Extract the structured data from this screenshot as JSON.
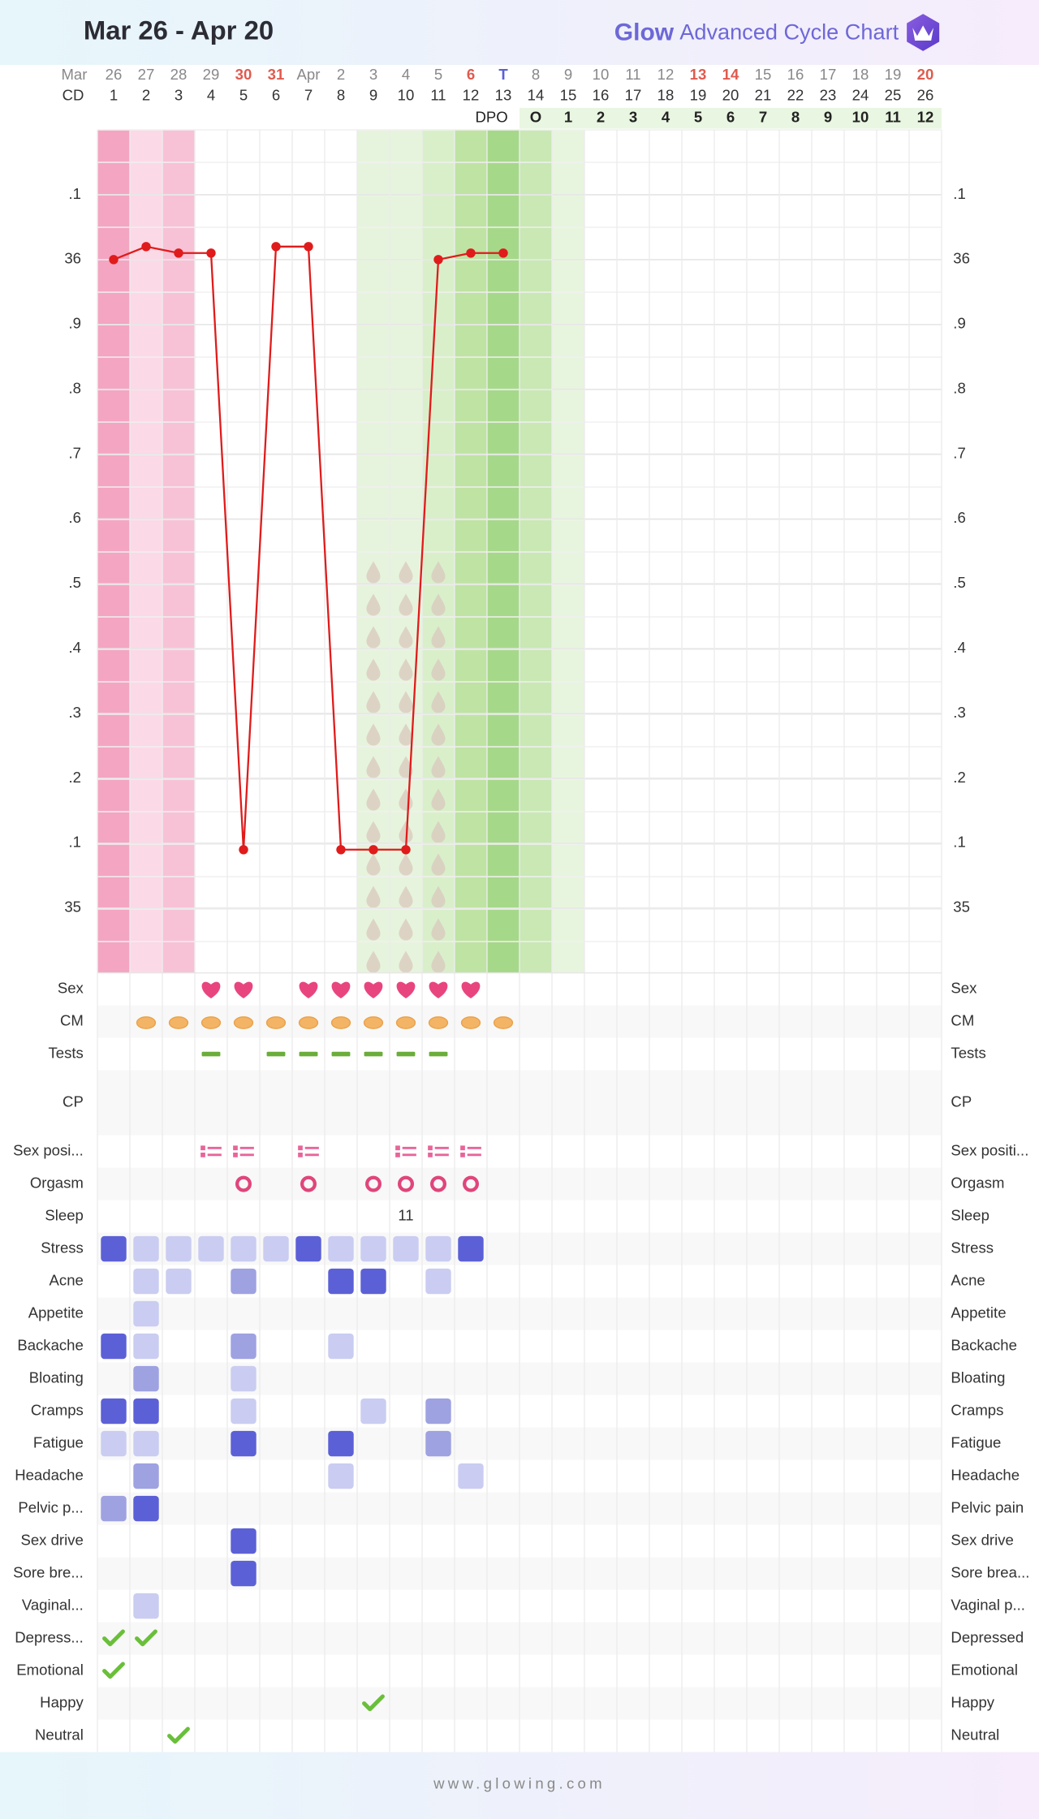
{
  "header": {
    "title": "Mar 26 - Apr 20",
    "logo_glow": "Glow",
    "logo_text": "Advanced Cycle Chart"
  },
  "footer": "www.glowing.com",
  "days": {
    "month_label": "Mar",
    "cd_label": "CD",
    "dpo_label": "DPO",
    "dates": [
      26,
      27,
      28,
      29,
      30,
      31,
      "Apr",
      2,
      3,
      4,
      5,
      6,
      "T",
      8,
      9,
      10,
      11,
      12,
      13,
      14,
      15,
      16,
      17,
      18,
      19,
      20
    ],
    "date_colors": [
      "#888888",
      "#888888",
      "#888888",
      "#888888",
      "#e05a4e",
      "#e05a4e",
      "#888888",
      "#888888",
      "#888888",
      "#888888",
      "#888888",
      "#e05a4e",
      "#5b5fd6",
      "#888888",
      "#888888",
      "#888888",
      "#888888",
      "#888888",
      "#e05a4e",
      "#e05a4e",
      "#888888",
      "#888888",
      "#888888",
      "#888888",
      "#888888",
      "#e05a4e"
    ],
    "cycle_days": [
      1,
      2,
      3,
      4,
      5,
      6,
      7,
      8,
      9,
      10,
      11,
      12,
      13,
      14,
      15,
      16,
      17,
      18,
      19,
      20,
      21,
      22,
      23,
      24,
      25,
      26
    ],
    "dpo": [
      null,
      null,
      null,
      null,
      null,
      null,
      null,
      null,
      null,
      null,
      null,
      null,
      null,
      "O",
      1,
      2,
      3,
      4,
      5,
      6,
      7,
      8,
      9,
      10,
      11,
      12
    ]
  },
  "chart_data": {
    "type": "line",
    "color": "#e01b1b",
    "values": [
      36.0,
      36.02,
      36.01,
      36.01,
      35.09,
      36.02,
      36.02,
      35.09,
      35.09,
      35.09,
      36.0,
      36.01,
      36.01,
      null,
      null,
      null,
      null,
      null,
      null,
      null,
      null,
      null,
      null,
      null,
      null,
      null
    ],
    "ylim": [
      34.9,
      36.2
    ],
    "yticks": [
      {
        "value": 36.1,
        "label": ".1"
      },
      36,
      {
        "value": 35.9,
        "label": ".9"
      },
      {
        "value": 35.8,
        "label": ".8"
      },
      {
        "value": 35.7,
        "label": ".7"
      },
      {
        "value": 35.6,
        "label": ".6"
      },
      {
        "value": 35.5,
        "label": ".5"
      },
      {
        "value": 35.4,
        "label": ".4"
      },
      {
        "value": 35.3,
        "label": ".3"
      },
      {
        "value": 35.2,
        "label": ".2"
      },
      {
        "value": 35.1,
        "label": ".1"
      },
      35
    ],
    "grid": true,
    "band_colors": [
      "#f4a5c2",
      "#fcd9e6",
      "#f8c2d6",
      null,
      null,
      null,
      null,
      null,
      "#e7f4dd",
      "#e7f4dd",
      "#d9efca",
      "#bfe3a3",
      "#a6d88a",
      "#c9e8b4",
      "#e8f5de",
      null,
      null,
      null,
      null,
      null,
      null,
      null,
      null,
      null,
      null,
      null
    ]
  },
  "level_colors": [
    "#cacdf1",
    "#9ea2e1",
    "#5c60d6"
  ],
  "rows": [
    {
      "label": "Sex",
      "label_right": "Sex",
      "kind": "heart",
      "values": [
        null,
        null,
        null,
        1,
        1,
        null,
        1,
        1,
        1,
        1,
        1,
        1,
        null,
        null,
        null,
        null,
        null,
        null,
        null,
        null,
        null,
        null,
        null,
        null,
        null,
        null
      ]
    },
    {
      "label": "CM",
      "label_right": "CM",
      "kind": "cm",
      "values": [
        null,
        1,
        1,
        1,
        1,
        1,
        1,
        1,
        1,
        1,
        1,
        1,
        1,
        null,
        null,
        null,
        null,
        null,
        null,
        null,
        null,
        null,
        null,
        null,
        null,
        null
      ]
    },
    {
      "label": "Tests",
      "label_right": "Tests",
      "kind": "test",
      "values": [
        null,
        null,
        null,
        1,
        null,
        1,
        1,
        1,
        1,
        1,
        1,
        null,
        null,
        null,
        null,
        null,
        null,
        null,
        null,
        null,
        null,
        null,
        null,
        null,
        null,
        null
      ]
    },
    {
      "label": "CP",
      "label_right": "CP",
      "kind": "empty",
      "tall": true
    },
    {
      "label": "Sex posi...",
      "label_right": "Sex positi...",
      "kind": "position",
      "values": [
        null,
        null,
        null,
        1,
        1,
        null,
        1,
        null,
        null,
        1,
        1,
        1,
        null,
        null,
        null,
        null,
        null,
        null,
        null,
        null,
        null,
        null,
        null,
        null,
        null,
        null
      ]
    },
    {
      "label": "Orgasm",
      "label_right": "Orgasm",
      "kind": "ring",
      "values": [
        null,
        null,
        null,
        null,
        1,
        null,
        1,
        null,
        1,
        1,
        1,
        1,
        null,
        null,
        null,
        null,
        null,
        null,
        null,
        null,
        null,
        null,
        null,
        null,
        null,
        null
      ]
    },
    {
      "label": "Sleep",
      "label_right": "Sleep",
      "kind": "text",
      "values": [
        null,
        null,
        null,
        null,
        null,
        null,
        null,
        null,
        null,
        11,
        null,
        null,
        null,
        null,
        null,
        null,
        null,
        null,
        null,
        null,
        null,
        null,
        null,
        null,
        null,
        null
      ]
    },
    {
      "label": "Stress",
      "label_right": "Stress",
      "kind": "level",
      "values": [
        3,
        1,
        1,
        1,
        1,
        1,
        3,
        1,
        1,
        1,
        1,
        3,
        null,
        null,
        null,
        null,
        null,
        null,
        null,
        null,
        null,
        null,
        null,
        null,
        null,
        null
      ]
    },
    {
      "label": "Acne",
      "label_right": "Acne",
      "kind": "level",
      "values": [
        null,
        1,
        1,
        null,
        2,
        null,
        null,
        3,
        3,
        null,
        1,
        null,
        null,
        null,
        null,
        null,
        null,
        null,
        null,
        null,
        null,
        null,
        null,
        null,
        null,
        null
      ]
    },
    {
      "label": "Appetite",
      "label_right": "Appetite",
      "kind": "level",
      "values": [
        null,
        1,
        null,
        null,
        null,
        null,
        null,
        null,
        null,
        null,
        null,
        null,
        null,
        null,
        null,
        null,
        null,
        null,
        null,
        null,
        null,
        null,
        null,
        null,
        null,
        null
      ]
    },
    {
      "label": "Backache",
      "label_right": "Backache",
      "kind": "level",
      "values": [
        3,
        1,
        null,
        null,
        2,
        null,
        null,
        1,
        null,
        null,
        null,
        null,
        null,
        null,
        null,
        null,
        null,
        null,
        null,
        null,
        null,
        null,
        null,
        null,
        null,
        null
      ]
    },
    {
      "label": "Bloating",
      "label_right": "Bloating",
      "kind": "level",
      "values": [
        null,
        2,
        null,
        null,
        1,
        null,
        null,
        null,
        null,
        null,
        null,
        null,
        null,
        null,
        null,
        null,
        null,
        null,
        null,
        null,
        null,
        null,
        null,
        null,
        null,
        null
      ]
    },
    {
      "label": "Cramps",
      "label_right": "Cramps",
      "kind": "level",
      "values": [
        3,
        3,
        null,
        null,
        1,
        null,
        null,
        null,
        1,
        null,
        2,
        null,
        null,
        null,
        null,
        null,
        null,
        null,
        null,
        null,
        null,
        null,
        null,
        null,
        null,
        null
      ]
    },
    {
      "label": "Fatigue",
      "label_right": "Fatigue",
      "kind": "level",
      "values": [
        1,
        1,
        null,
        null,
        3,
        null,
        null,
        3,
        null,
        null,
        2,
        null,
        null,
        null,
        null,
        null,
        null,
        null,
        null,
        null,
        null,
        null,
        null,
        null,
        null,
        null
      ]
    },
    {
      "label": "Headache",
      "label_right": "Headache",
      "kind": "level",
      "values": [
        null,
        2,
        null,
        null,
        null,
        null,
        null,
        1,
        null,
        null,
        null,
        1,
        null,
        null,
        null,
        null,
        null,
        null,
        null,
        null,
        null,
        null,
        null,
        null,
        null,
        null
      ]
    },
    {
      "label": "Pelvic p...",
      "label_right": "Pelvic pain",
      "kind": "level",
      "values": [
        2,
        3,
        null,
        null,
        null,
        null,
        null,
        null,
        null,
        null,
        null,
        null,
        null,
        null,
        null,
        null,
        null,
        null,
        null,
        null,
        null,
        null,
        null,
        null,
        null,
        null
      ]
    },
    {
      "label": "Sex drive",
      "label_right": "Sex drive",
      "kind": "level",
      "values": [
        null,
        null,
        null,
        null,
        3,
        null,
        null,
        null,
        null,
        null,
        null,
        null,
        null,
        null,
        null,
        null,
        null,
        null,
        null,
        null,
        null,
        null,
        null,
        null,
        null,
        null
      ]
    },
    {
      "label": "Sore bre...",
      "label_right": "Sore brea...",
      "kind": "level",
      "values": [
        null,
        null,
        null,
        null,
        3,
        null,
        null,
        null,
        null,
        null,
        null,
        null,
        null,
        null,
        null,
        null,
        null,
        null,
        null,
        null,
        null,
        null,
        null,
        null,
        null,
        null
      ]
    },
    {
      "label": "Vaginal...",
      "label_right": "Vaginal p...",
      "kind": "level",
      "values": [
        null,
        1,
        null,
        null,
        null,
        null,
        null,
        null,
        null,
        null,
        null,
        null,
        null,
        null,
        null,
        null,
        null,
        null,
        null,
        null,
        null,
        null,
        null,
        null,
        null,
        null
      ]
    },
    {
      "label": "Depress...",
      "label_right": "Depressed",
      "kind": "check",
      "values": [
        1,
        1,
        null,
        null,
        null,
        null,
        null,
        null,
        null,
        null,
        null,
        null,
        null,
        null,
        null,
        null,
        null,
        null,
        null,
        null,
        null,
        null,
        null,
        null,
        null,
        null
      ]
    },
    {
      "label": "Emotional",
      "label_right": "Emotional",
      "kind": "check",
      "values": [
        1,
        null,
        null,
        null,
        null,
        null,
        null,
        null,
        null,
        null,
        null,
        null,
        null,
        null,
        null,
        null,
        null,
        null,
        null,
        null,
        null,
        null,
        null,
        null,
        null,
        null
      ]
    },
    {
      "label": "Happy",
      "label_right": "Happy",
      "kind": "check",
      "values": [
        null,
        null,
        null,
        null,
        null,
        null,
        null,
        null,
        1,
        null,
        null,
        null,
        null,
        null,
        null,
        null,
        null,
        null,
        null,
        null,
        null,
        null,
        null,
        null,
        null,
        null
      ]
    },
    {
      "label": "Neutral",
      "label_right": "Neutral",
      "kind": "check",
      "values": [
        null,
        null,
        1,
        null,
        null,
        null,
        null,
        null,
        null,
        null,
        null,
        null,
        null,
        null,
        null,
        null,
        null,
        null,
        null,
        null,
        null,
        null,
        null,
        null,
        null,
        null
      ]
    }
  ]
}
